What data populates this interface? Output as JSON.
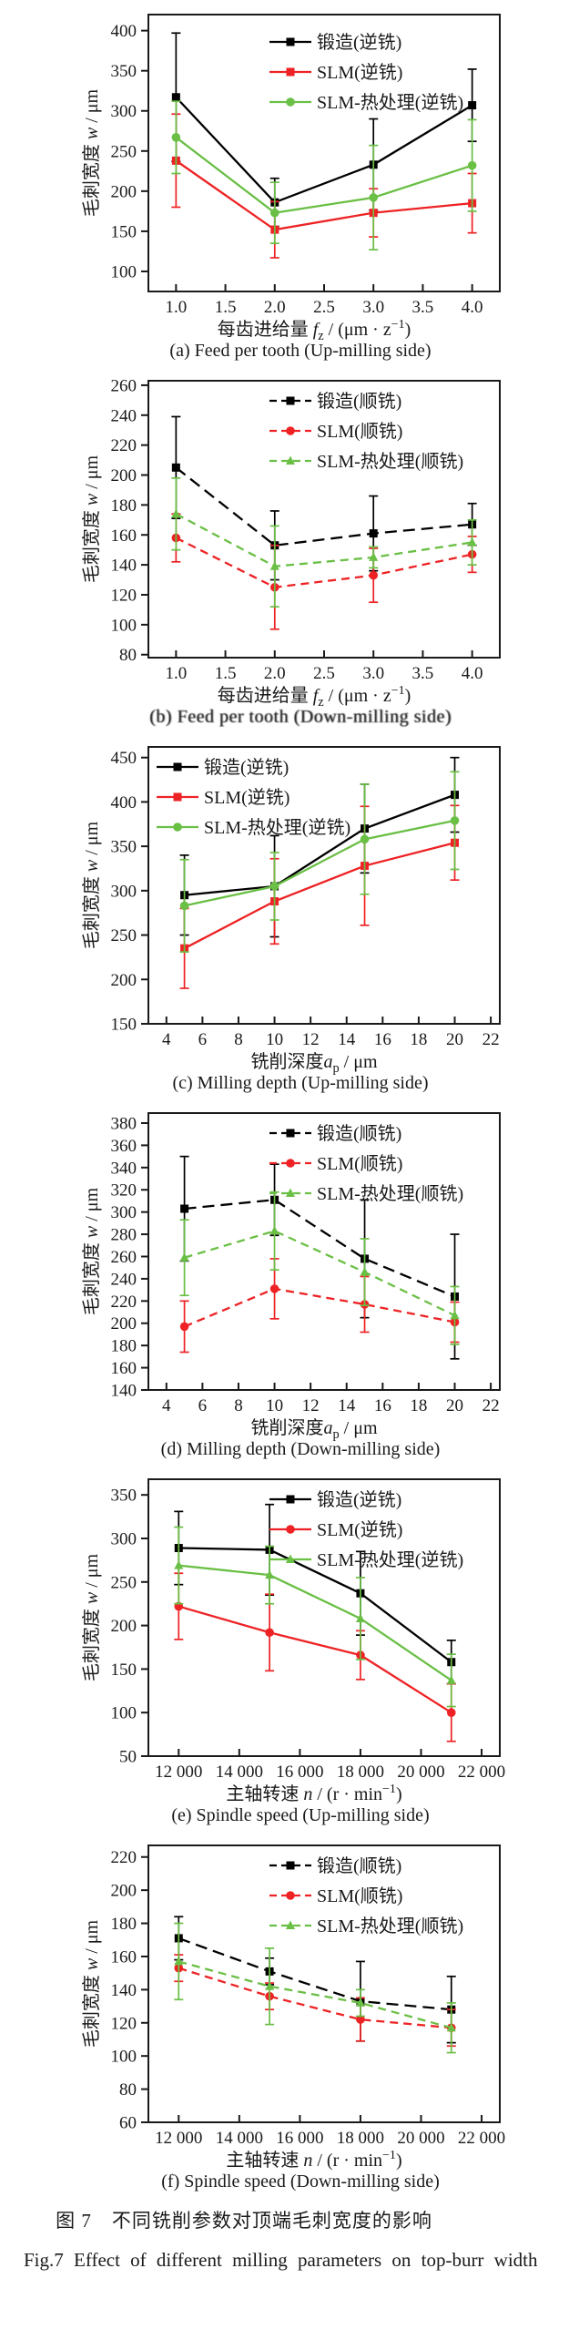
{
  "figure": {
    "caption_zh": "图 7　不同铣削参数对顶端毛刺宽度的影响",
    "caption_en": "Fig.7   Effect of different milling parameters on top-burr width"
  },
  "colors": {
    "forged": "#000000",
    "slm": "#ee2224",
    "slm_heat_treated": "#6abf45",
    "axis": "#1a1a1a"
  },
  "chart_data": [
    {
      "id": "a",
      "type": "line",
      "caption": "(a) Feed per tooth (Up-milling side)",
      "ylabel": {
        "pre": "毛刺宽度 ",
        "var": "w",
        "post": " / μm"
      },
      "xlabel": {
        "pre": "每齿进给量 ",
        "var": "f",
        "sub": "z",
        "post": " / (μm · z",
        "sup": "−1",
        "end": ")"
      },
      "x": [
        1.0,
        2.0,
        3.0,
        4.0
      ],
      "xlim": [
        0.72,
        4.28
      ],
      "ylim": [
        75,
        420
      ],
      "xticks": [
        {
          "v": 1.0,
          "label": "1.0"
        },
        {
          "v": 1.5,
          "label": "1.5"
        },
        {
          "v": 2.0,
          "label": "2.0"
        },
        {
          "v": 2.5,
          "label": "2.5"
        },
        {
          "v": 3.0,
          "label": "3.0"
        },
        {
          "v": 3.5,
          "label": "3.5"
        },
        {
          "v": 4.0,
          "label": "4.0"
        }
      ],
      "yticks": [
        100,
        150,
        200,
        250,
        300,
        350,
        400
      ],
      "dashed": false,
      "legend_pos": "right",
      "grid": false,
      "series": [
        {
          "name": "锻造(逆铣)",
          "color": "#000000",
          "marker": "square",
          "values": [
            317,
            186,
            233,
            307
          ],
          "err": [
            80,
            30,
            57,
            45
          ]
        },
        {
          "name": "SLM(逆铣)",
          "color": "#ee2224",
          "marker": "square",
          "values": [
            238,
            152,
            173,
            185
          ],
          "err": [
            58,
            35,
            30,
            37
          ]
        },
        {
          "name": "SLM-热处理(逆铣)",
          "color": "#6abf45",
          "marker": "circle",
          "values": [
            267,
            173,
            192,
            232
          ],
          "err": [
            45,
            38,
            65,
            57
          ]
        }
      ]
    },
    {
      "id": "b",
      "type": "line",
      "caption": "(b) Feed per tooth (Down-milling side)",
      "ylabel": {
        "pre": "毛刺宽度 ",
        "var": "w",
        "post": " / μm"
      },
      "xlabel": {
        "pre": "每齿进给量 ",
        "var": "f",
        "sub": "z",
        "post": " / (μm · z",
        "sup": "−1",
        "end": ")"
      },
      "x": [
        1.0,
        2.0,
        3.0,
        4.0
      ],
      "xlim": [
        0.72,
        4.28
      ],
      "ylim": [
        78,
        263
      ],
      "xticks": [
        {
          "v": 1.0,
          "label": "1.0"
        },
        {
          "v": 1.5,
          "label": "1.5"
        },
        {
          "v": 2.0,
          "label": "2.0"
        },
        {
          "v": 2.5,
          "label": "2.5"
        },
        {
          "v": 3.0,
          "label": "3.0"
        },
        {
          "v": 3.5,
          "label": "3.5"
        },
        {
          "v": 4.0,
          "label": "4.0"
        }
      ],
      "yticks": [
        80,
        100,
        120,
        140,
        160,
        180,
        200,
        220,
        240,
        260
      ],
      "dashed": true,
      "legend_pos": "right",
      "grid": false,
      "series": [
        {
          "name": "锻造(顺铣)",
          "color": "#000000",
          "marker": "square",
          "values": [
            205,
            153,
            161,
            167
          ],
          "err": [
            34,
            23,
            25,
            14
          ]
        },
        {
          "name": "SLM(顺铣)",
          "color": "#ee2224",
          "marker": "circle",
          "values": [
            158,
            125,
            133,
            147
          ],
          "err": [
            16,
            28,
            18,
            12
          ]
        },
        {
          "name": "SLM-热处理(顺铣)",
          "color": "#6abf45",
          "marker": "triangle",
          "values": [
            174,
            139,
            145,
            155
          ],
          "err": [
            24,
            27,
            7,
            15
          ]
        }
      ]
    },
    {
      "id": "c",
      "type": "line",
      "caption": "(c) Milling depth (Up-milling side)",
      "ylabel": {
        "pre": "毛刺宽度 ",
        "var": "w",
        "post": " / μm"
      },
      "xlabel": {
        "pre": "铣削深度",
        "var": "a",
        "sub": "p",
        "post": " / μm",
        "sup": "",
        "end": ""
      },
      "x": [
        5,
        10,
        15,
        20
      ],
      "xlim": [
        3,
        22.5
      ],
      "ylim": [
        150,
        462
      ],
      "xticks": [
        {
          "v": 4,
          "label": "4"
        },
        {
          "v": 6,
          "label": "6"
        },
        {
          "v": 8,
          "label": "8"
        },
        {
          "v": 10,
          "label": "10"
        },
        {
          "v": 12,
          "label": "12"
        },
        {
          "v": 14,
          "label": "14"
        },
        {
          "v": 16,
          "label": "16"
        },
        {
          "v": 18,
          "label": "18"
        },
        {
          "v": 20,
          "label": "20"
        },
        {
          "v": 22,
          "label": "22"
        }
      ],
      "yticks": [
        150,
        200,
        250,
        300,
        350,
        400,
        450
      ],
      "dashed": false,
      "legend_pos": "left",
      "grid": false,
      "series": [
        {
          "name": "锻造(逆铣)",
          "color": "#000000",
          "marker": "square",
          "values": [
            295,
            305,
            370,
            408
          ],
          "err": [
            45,
            57,
            50,
            42
          ]
        },
        {
          "name": "SLM(逆铣)",
          "color": "#ee2224",
          "marker": "square",
          "values": [
            235,
            288,
            328,
            354
          ],
          "err": [
            45,
            48,
            67,
            42
          ]
        },
        {
          "name": "SLM-热处理(逆铣)",
          "color": "#6abf45",
          "marker": "circle",
          "values": [
            283,
            305,
            358,
            379
          ],
          "err": [
            52,
            38,
            62,
            55
          ]
        }
      ]
    },
    {
      "id": "d",
      "type": "line",
      "caption": "(d) Milling depth (Down-milling side)",
      "ylabel": {
        "pre": "毛刺宽度 ",
        "var": "w",
        "post": " / μm"
      },
      "xlabel": {
        "pre": "铣削深度",
        "var": "a",
        "sub": "p",
        "post": " / μm",
        "sup": "",
        "end": ""
      },
      "x": [
        5,
        10,
        15,
        20
      ],
      "xlim": [
        3,
        22.5
      ],
      "ylim": [
        140,
        389
      ],
      "xticks": [
        {
          "v": 4,
          "label": "4"
        },
        {
          "v": 6,
          "label": "6"
        },
        {
          "v": 8,
          "label": "8"
        },
        {
          "v": 10,
          "label": "10"
        },
        {
          "v": 12,
          "label": "12"
        },
        {
          "v": 14,
          "label": "14"
        },
        {
          "v": 16,
          "label": "16"
        },
        {
          "v": 18,
          "label": "18"
        },
        {
          "v": 20,
          "label": "20"
        },
        {
          "v": 22,
          "label": "22"
        }
      ],
      "yticks": [
        140,
        160,
        180,
        200,
        220,
        240,
        260,
        280,
        300,
        320,
        340,
        360,
        380
      ],
      "dashed": true,
      "legend_pos": "right",
      "grid": false,
      "series": [
        {
          "name": "锻造(顺铣)",
          "color": "#000000",
          "marker": "square",
          "values": [
            303,
            311,
            258,
            224
          ],
          "err": [
            47,
            32,
            53,
            56
          ]
        },
        {
          "name": "SLM(顺铣)",
          "color": "#ee2224",
          "marker": "circle",
          "values": [
            197,
            231,
            217,
            201
          ],
          "err": [
            23,
            27,
            25,
            18
          ]
        },
        {
          "name": "SLM-热处理(顺铣)",
          "color": "#6abf45",
          "marker": "triangle",
          "values": [
            259,
            283,
            246,
            207
          ],
          "err": [
            34,
            35,
            30,
            26
          ]
        }
      ]
    },
    {
      "id": "e",
      "type": "line",
      "caption": "(e) Spindle speed (Up-milling side)",
      "ylabel": {
        "pre": "毛刺宽度 ",
        "var": "w",
        "post": " / μm"
      },
      "xlabel": {
        "pre": "主轴转速 ",
        "var": "n",
        "sub": "",
        "post": " / (r · min",
        "sup": "−1",
        "end": ")"
      },
      "x": [
        12000,
        15000,
        18000,
        21000
      ],
      "xlim": [
        11000,
        22600
      ],
      "ylim": [
        50,
        368
      ],
      "xticks": [
        {
          "v": 12000,
          "label": "12 000"
        },
        {
          "v": 14000,
          "label": "14 000"
        },
        {
          "v": 16000,
          "label": "16 000"
        },
        {
          "v": 18000,
          "label": "18 000"
        },
        {
          "v": 20000,
          "label": "20 000"
        },
        {
          "v": 22000,
          "label": "22 000"
        }
      ],
      "yticks": [
        50,
        100,
        150,
        200,
        250,
        300,
        350
      ],
      "dashed": false,
      "legend_pos": "right",
      "grid": false,
      "series": [
        {
          "name": "锻造(逆铣)",
          "color": "#000000",
          "marker": "square",
          "values": [
            289,
            287,
            237,
            158
          ],
          "err": [
            42,
            52,
            48,
            25
          ]
        },
        {
          "name": "SLM(逆铣)",
          "color": "#ee2224",
          "marker": "circle",
          "values": [
            222,
            192,
            166,
            100
          ],
          "err": [
            38,
            44,
            28,
            33
          ]
        },
        {
          "name": "SLM-热处理(逆铣)",
          "color": "#6abf45",
          "marker": "triangle",
          "values": [
            269,
            258,
            208,
            137
          ],
          "err": [
            44,
            33,
            47,
            30
          ]
        }
      ]
    },
    {
      "id": "f",
      "type": "line",
      "caption": "(f) Spindle speed (Down-milling side)",
      "ylabel": {
        "pre": "毛刺宽度 ",
        "var": "w",
        "post": " / μm"
      },
      "xlabel": {
        "pre": "主轴转速 ",
        "var": "n",
        "sub": "",
        "post": " / (r · min",
        "sup": "−1",
        "end": ")"
      },
      "x": [
        12000,
        15000,
        18000,
        21000
      ],
      "xlim": [
        11000,
        22600
      ],
      "ylim": [
        60,
        227
      ],
      "xticks": [
        {
          "v": 12000,
          "label": "12 000"
        },
        {
          "v": 14000,
          "label": "14 000"
        },
        {
          "v": 16000,
          "label": "16 000"
        },
        {
          "v": 18000,
          "label": "18 000"
        },
        {
          "v": 20000,
          "label": "20 000"
        },
        {
          "v": 22000,
          "label": "22 000"
        }
      ],
      "yticks": [
        60,
        80,
        100,
        120,
        140,
        160,
        180,
        200,
        220
      ],
      "dashed": true,
      "legend_pos": "right",
      "grid": false,
      "series": [
        {
          "name": "锻造(顺铣)",
          "color": "#000000",
          "marker": "square",
          "values": [
            171,
            151,
            133,
            128
          ],
          "err": [
            13,
            8,
            24,
            20
          ]
        },
        {
          "name": "SLM(顺铣)",
          "color": "#ee2224",
          "marker": "circle",
          "values": [
            153,
            136,
            122,
            117
          ],
          "err": [
            8,
            8,
            13,
            11
          ]
        },
        {
          "name": "SLM-热处理(顺铣)",
          "color": "#6abf45",
          "marker": "triangle",
          "values": [
            157,
            142,
            132,
            117
          ],
          "err": [
            23,
            23,
            8,
            15
          ]
        }
      ]
    }
  ]
}
